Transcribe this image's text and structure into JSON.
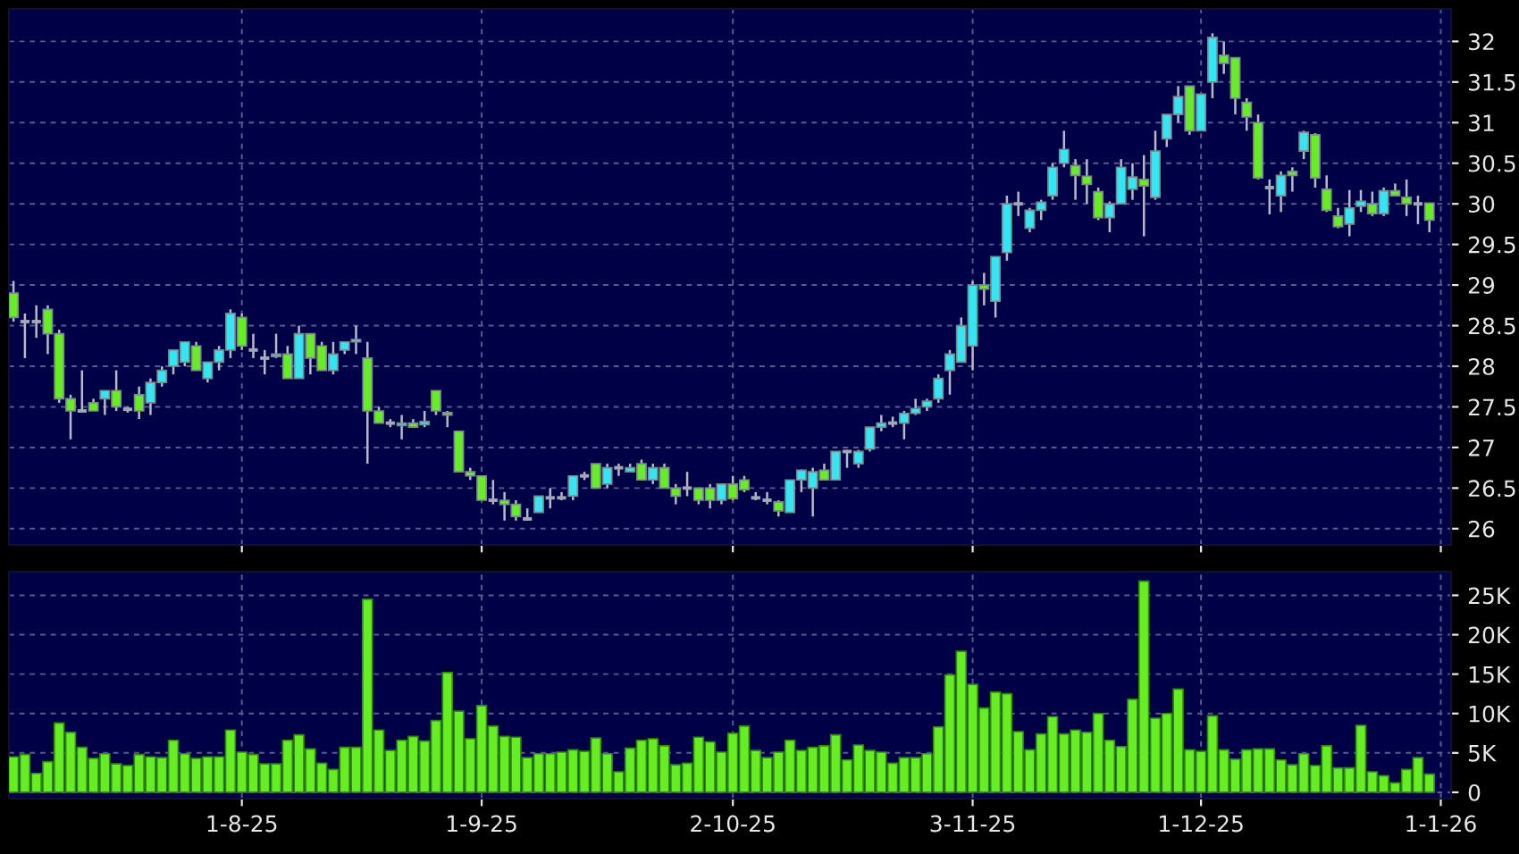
{
  "chart_data": [
    {
      "type": "candlestick",
      "categories": [
        null,
        null,
        null,
        null,
        null,
        null,
        null,
        null,
        null,
        null,
        null,
        null,
        null,
        null,
        null,
        null,
        null,
        null,
        null,
        null,
        null,
        null,
        null,
        null,
        null,
        null,
        null,
        null,
        null,
        null,
        null,
        null,
        null,
        null,
        null,
        null,
        null,
        null,
        null,
        null,
        null,
        null,
        null,
        null,
        null,
        null,
        null,
        null,
        null,
        null,
        null,
        null,
        null,
        null,
        null,
        null,
        null,
        null,
        null,
        null,
        null,
        null,
        null,
        null,
        null,
        null,
        null,
        null,
        null,
        null,
        null,
        null,
        null,
        null,
        null,
        null,
        null,
        null,
        null,
        null,
        null,
        null,
        null,
        null,
        null,
        null,
        null,
        null,
        null,
        null,
        null,
        null,
        null,
        null,
        null,
        null,
        null,
        null,
        null,
        null,
        null,
        null,
        null,
        null,
        null,
        null,
        null,
        null,
        null,
        null,
        null,
        null,
        null,
        null,
        null,
        null,
        null,
        null,
        null,
        null,
        null,
        null,
        null,
        null,
        null,
        null
      ],
      "ohlc": [
        [
          28.9,
          29.05,
          28.55,
          28.6
        ],
        [
          28.55,
          28.65,
          28.1,
          28.55
        ],
        [
          28.55,
          28.75,
          28.35,
          28.55
        ],
        [
          28.7,
          28.75,
          28.15,
          28.4
        ],
        [
          28.4,
          28.45,
          27.55,
          27.6
        ],
        [
          27.6,
          27.65,
          27.1,
          27.45
        ],
        [
          27.45,
          27.95,
          27.45,
          27.45
        ],
        [
          27.55,
          27.6,
          27.45,
          27.45
        ],
        [
          27.6,
          27.7,
          27.4,
          27.7
        ],
        [
          27.7,
          27.95,
          27.45,
          27.5
        ],
        [
          27.47,
          27.5,
          27.43,
          27.47
        ],
        [
          27.65,
          27.75,
          27.35,
          27.45
        ],
        [
          27.55,
          27.85,
          27.4,
          27.8
        ],
        [
          27.8,
          28.0,
          27.75,
          27.95
        ],
        [
          28.0,
          28.2,
          27.9,
          28.2
        ],
        [
          28.05,
          28.3,
          28.0,
          28.3
        ],
        [
          28.25,
          28.3,
          27.95,
          27.95
        ],
        [
          27.85,
          28.05,
          27.8,
          28.05
        ],
        [
          28.05,
          28.25,
          27.95,
          28.2
        ],
        [
          28.2,
          28.7,
          28.1,
          28.65
        ],
        [
          28.6,
          28.65,
          28.2,
          28.25
        ],
        [
          28.2,
          28.4,
          28.1,
          28.2
        ],
        [
          28.1,
          28.2,
          27.9,
          28.1
        ],
        [
          28.12,
          28.4,
          28.1,
          28.15
        ],
        [
          28.15,
          28.25,
          27.85,
          27.85
        ],
        [
          27.85,
          28.5,
          27.85,
          28.4
        ],
        [
          28.4,
          28.4,
          27.9,
          28.1
        ],
        [
          28.25,
          28.3,
          27.95,
          27.95
        ],
        [
          27.95,
          28.3,
          27.9,
          28.15
        ],
        [
          28.2,
          28.3,
          28.15,
          28.3
        ],
        [
          28.3,
          28.5,
          28.15,
          28.33
        ],
        [
          28.1,
          28.3,
          26.8,
          27.45
        ],
        [
          27.45,
          27.5,
          27.3,
          27.3
        ],
        [
          27.3,
          27.35,
          27.25,
          27.3
        ],
        [
          27.27,
          27.4,
          27.1,
          27.3
        ],
        [
          27.3,
          27.35,
          27.25,
          27.25
        ],
        [
          27.28,
          27.45,
          27.25,
          27.32
        ],
        [
          27.7,
          27.7,
          27.4,
          27.45
        ],
        [
          27.43,
          27.45,
          27.25,
          27.4
        ],
        [
          27.2,
          27.2,
          26.7,
          26.7
        ],
        [
          26.7,
          26.75,
          26.6,
          26.65
        ],
        [
          26.65,
          26.65,
          26.35,
          26.35
        ],
        [
          26.35,
          26.6,
          26.3,
          26.35
        ],
        [
          26.35,
          26.45,
          26.1,
          26.3
        ],
        [
          26.3,
          26.35,
          26.1,
          26.15
        ],
        [
          26.12,
          26.25,
          26.1,
          26.12
        ],
        [
          26.2,
          26.4,
          26.2,
          26.4
        ],
        [
          26.38,
          26.5,
          26.25,
          26.38
        ],
        [
          26.38,
          26.45,
          26.35,
          26.38
        ],
        [
          26.4,
          26.65,
          26.35,
          26.65
        ],
        [
          26.65,
          26.7,
          26.6,
          26.65
        ],
        [
          26.8,
          26.8,
          26.5,
          26.5
        ],
        [
          26.55,
          26.8,
          26.5,
          26.75
        ],
        [
          26.75,
          26.8,
          26.65,
          26.75
        ],
        [
          26.7,
          26.8,
          26.7,
          26.75
        ],
        [
          26.8,
          26.85,
          26.6,
          26.6
        ],
        [
          26.6,
          26.8,
          26.55,
          26.75
        ],
        [
          26.75,
          26.8,
          26.5,
          26.5
        ],
        [
          26.5,
          26.55,
          26.3,
          26.4
        ],
        [
          26.5,
          26.7,
          26.4,
          26.5
        ],
        [
          26.5,
          26.5,
          26.3,
          26.35
        ],
        [
          26.5,
          26.55,
          26.25,
          26.35
        ],
        [
          26.35,
          26.55,
          26.3,
          26.55
        ],
        [
          26.55,
          26.65,
          26.35,
          26.37
        ],
        [
          26.6,
          26.65,
          26.45,
          26.48
        ],
        [
          26.38,
          26.45,
          26.35,
          26.38
        ],
        [
          26.35,
          26.45,
          26.3,
          26.35
        ],
        [
          26.33,
          26.35,
          26.15,
          26.22
        ],
        [
          26.2,
          26.6,
          26.2,
          26.6
        ],
        [
          26.6,
          26.73,
          26.45,
          26.72
        ],
        [
          26.5,
          26.75,
          26.15,
          26.7
        ],
        [
          26.72,
          26.8,
          26.6,
          26.6
        ],
        [
          26.6,
          26.95,
          26.6,
          26.95
        ],
        [
          26.95,
          26.97,
          26.75,
          26.95
        ],
        [
          26.8,
          26.97,
          26.75,
          26.95
        ],
        [
          26.98,
          27.25,
          26.95,
          27.25
        ],
        [
          27.25,
          27.4,
          27.2,
          27.3
        ],
        [
          27.3,
          27.38,
          27.25,
          27.3
        ],
        [
          27.3,
          27.45,
          27.1,
          27.42
        ],
        [
          27.42,
          27.6,
          27.4,
          27.48
        ],
        [
          27.5,
          27.6,
          27.45,
          27.57
        ],
        [
          27.6,
          27.9,
          27.55,
          27.85
        ],
        [
          27.95,
          28.2,
          27.65,
          28.15
        ],
        [
          28.05,
          28.6,
          28.05,
          28.5
        ],
        [
          28.25,
          29.05,
          27.95,
          29.0
        ],
        [
          29.0,
          29.15,
          28.75,
          28.95
        ],
        [
          28.8,
          29.35,
          28.6,
          29.35
        ],
        [
          29.4,
          30.1,
          29.3,
          30.0
        ],
        [
          30.0,
          30.15,
          29.85,
          30.0
        ],
        [
          29.7,
          29.95,
          29.65,
          29.92
        ],
        [
          29.92,
          30.05,
          29.8,
          30.02
        ],
        [
          30.1,
          30.5,
          30.05,
          30.45
        ],
        [
          30.5,
          30.9,
          30.45,
          30.67
        ],
        [
          30.47,
          30.55,
          30.05,
          30.35
        ],
        [
          30.34,
          30.55,
          30.0,
          30.24
        ],
        [
          30.15,
          30.2,
          29.8,
          29.83
        ],
        [
          29.83,
          30.03,
          29.65,
          30.0
        ],
        [
          30.0,
          30.55,
          30.0,
          30.45
        ],
        [
          30.18,
          30.5,
          30.05,
          30.33
        ],
        [
          30.3,
          30.6,
          29.6,
          30.22
        ],
        [
          30.08,
          30.9,
          30.05,
          30.65
        ],
        [
          30.8,
          31.1,
          30.7,
          31.1
        ],
        [
          31.1,
          31.45,
          31.0,
          31.32
        ],
        [
          31.45,
          31.45,
          30.85,
          30.9
        ],
        [
          30.9,
          31.35,
          30.9,
          31.35
        ],
        [
          31.5,
          32.1,
          31.3,
          32.05
        ],
        [
          31.83,
          32.0,
          31.6,
          31.73
        ],
        [
          31.8,
          31.8,
          31.1,
          31.3
        ],
        [
          31.25,
          31.3,
          30.9,
          31.07
        ],
        [
          31.0,
          31.1,
          30.3,
          30.32
        ],
        [
          30.2,
          30.3,
          29.87,
          30.2
        ],
        [
          30.1,
          30.4,
          29.9,
          30.35
        ],
        [
          30.4,
          30.45,
          30.15,
          30.35
        ],
        [
          30.65,
          30.9,
          30.55,
          30.88
        ],
        [
          30.85,
          30.87,
          30.2,
          30.32
        ],
        [
          30.18,
          30.35,
          29.9,
          29.92
        ],
        [
          29.85,
          29.95,
          29.7,
          29.72
        ],
        [
          29.75,
          30.17,
          29.6,
          29.95
        ],
        [
          29.97,
          30.17,
          29.9,
          30.03
        ],
        [
          30.0,
          30.15,
          29.85,
          29.88
        ],
        [
          29.88,
          30.2,
          29.85,
          30.16
        ],
        [
          30.16,
          30.25,
          30.1,
          30.1
        ],
        [
          30.08,
          30.3,
          29.85,
          30.0
        ],
        [
          30.0,
          30.1,
          29.75,
          30.0
        ],
        [
          30.01,
          30.01,
          29.65,
          29.8
        ],
        null
      ],
      "colors": [
        "#66ee22",
        "#a0a8b8",
        "#a0a8b8",
        "#66ee22",
        "#66ee22",
        "#66ee22",
        "#a0a8b8",
        "#66ee22",
        "#33e6f2",
        "#66ee22",
        "#a0a8b8",
        "#66ee22",
        "#33e6f2",
        "#33e6f2",
        "#33e6f2",
        "#33e6f2",
        "#66ee22",
        "#33e6f2",
        "#33e6f2",
        "#33e6f2",
        "#66ee22",
        "#a0a8b8",
        "#a0a8b8",
        "#33e6f2",
        "#66ee22",
        "#33e6f2",
        "#66ee22",
        "#66ee22",
        "#33e6f2",
        "#33e6f2",
        "#33e6f2",
        "#66ee22",
        "#66ee22",
        "#a0a8b8",
        "#33e6f2",
        "#66ee22",
        "#33e6f2",
        "#66ee22",
        "#66ee22",
        "#66ee22",
        "#66ee22",
        "#66ee22",
        "#a0a8b8",
        "#66ee22",
        "#66ee22",
        "#a0a8b8",
        "#33e6f2",
        "#a0a8b8",
        "#a0a8b8",
        "#33e6f2",
        "#a0a8b8",
        "#66ee22",
        "#33e6f2",
        "#a0a8b8",
        "#33e6f2",
        "#66ee22",
        "#33e6f2",
        "#66ee22",
        "#66ee22",
        "#a0a8b8",
        "#66ee22",
        "#66ee22",
        "#33e6f2",
        "#66ee22",
        "#66ee22",
        "#a0a8b8",
        "#a0a8b8",
        "#66ee22",
        "#33e6f2",
        "#33e6f2",
        "#33e6f2",
        "#66ee22",
        "#33e6f2",
        "#a0a8b8",
        "#33e6f2",
        "#33e6f2",
        "#33e6f2",
        "#a0a8b8",
        "#33e6f2",
        "#33e6f2",
        "#33e6f2",
        "#33e6f2",
        "#33e6f2",
        "#33e6f2",
        "#33e6f2",
        "#66ee22",
        "#33e6f2",
        "#33e6f2",
        "#a0a8b8",
        "#33e6f2",
        "#33e6f2",
        "#33e6f2",
        "#33e6f2",
        "#66ee22",
        "#66ee22",
        "#66ee22",
        "#33e6f2",
        "#33e6f2",
        "#33e6f2",
        "#66ee22",
        "#33e6f2",
        "#33e6f2",
        "#33e6f2",
        "#66ee22",
        "#33e6f2",
        "#33e6f2",
        "#66ee22",
        "#66ee22",
        "#66ee22",
        "#66ee22",
        "#a0a8b8",
        "#33e6f2",
        "#66ee22",
        "#33e6f2",
        "#66ee22",
        "#66ee22",
        "#66ee22",
        "#33e6f2",
        "#33e6f2",
        "#66ee22",
        "#33e6f2",
        "#66ee22",
        "#66ee22",
        "#a0a8b8",
        "#66ee22",
        null
      ],
      "ylim": [
        25.8,
        32.4
      ],
      "yticks": [
        26,
        26.5,
        27,
        27.5,
        28,
        28.5,
        29,
        29.5,
        30,
        30.5,
        31,
        31.5,
        32
      ],
      "grid": true,
      "tick_labels": "y"
    },
    {
      "type": "bar",
      "categories": [
        null,
        null,
        null,
        null,
        null,
        null,
        null,
        null,
        null,
        null,
        null,
        null,
        null,
        null,
        null,
        null,
        null,
        null,
        null,
        null,
        "1-8-25",
        null,
        null,
        null,
        null,
        null,
        null,
        null,
        null,
        null,
        null,
        null,
        null,
        null,
        null,
        null,
        null,
        null,
        null,
        null,
        null,
        "1-9-25",
        null,
        null,
        null,
        null,
        null,
        null,
        null,
        null,
        null,
        null,
        null,
        null,
        null,
        null,
        null,
        null,
        null,
        null,
        null,
        null,
        null,
        "2-10-25",
        null,
        null,
        null,
        null,
        null,
        null,
        null,
        null,
        null,
        null,
        null,
        null,
        null,
        null,
        null,
        null,
        null,
        null,
        null,
        null,
        "3-11-25",
        null,
        null,
        null,
        null,
        null,
        null,
        null,
        null,
        null,
        null,
        null,
        null,
        null,
        null,
        null,
        null,
        null,
        null,
        null,
        "1-12-25",
        null,
        null,
        null,
        null,
        null,
        null,
        null,
        null,
        null,
        null,
        null,
        null,
        null,
        null,
        null,
        null,
        null,
        null,
        null,
        null,
        "1-1-26"
      ],
      "values": [
        4500,
        4800,
        2400,
        3900,
        8800,
        7600,
        5700,
        4300,
        4900,
        3600,
        3400,
        4800,
        4500,
        4400,
        6600,
        4900,
        4300,
        4500,
        4500,
        7900,
        5100,
        4800,
        3600,
        3600,
        6600,
        7300,
        5500,
        3700,
        2900,
        5700,
        5700,
        24500,
        7900,
        5300,
        6600,
        7100,
        6500,
        9100,
        15200,
        10300,
        6800,
        11000,
        8400,
        7100,
        7000,
        4400,
        4900,
        4900,
        5100,
        5400,
        5200,
        6900,
        4900,
        2600,
        5600,
        6600,
        6800,
        5900,
        3500,
        3700,
        7000,
        6400,
        5100,
        7500,
        8400,
        5300,
        4400,
        5100,
        6600,
        5300,
        5700,
        5900,
        7300,
        4100,
        6000,
        5300,
        5100,
        3700,
        4400,
        4400,
        4900,
        8300,
        14900,
        17900,
        13700,
        10700,
        12700,
        12500,
        7700,
        5400,
        7400,
        9600,
        7400,
        7900,
        7600,
        10000,
        6600,
        5800,
        11800,
        26800,
        9400,
        10000,
        13100,
        5400,
        5200,
        9700,
        5400,
        4200,
        5400,
        5500,
        5500,
        4100,
        3500,
        4900,
        3400,
        5900,
        3100,
        3100,
        8500,
        2600,
        2100,
        1200,
        2900,
        4400,
        2300,
        null
      ],
      "color": "#66ee22",
      "ylim": [
        -800,
        28000
      ],
      "yticks": [
        0,
        {
          "value": 5000,
          "label": "5K"
        },
        {
          "value": 10000,
          "label": "10K"
        },
        {
          "value": 15000,
          "label": "15K"
        },
        {
          "value": 20000,
          "label": "20K"
        },
        {
          "value": 25000,
          "label": "25K"
        }
      ],
      "grid": true
    }
  ]
}
